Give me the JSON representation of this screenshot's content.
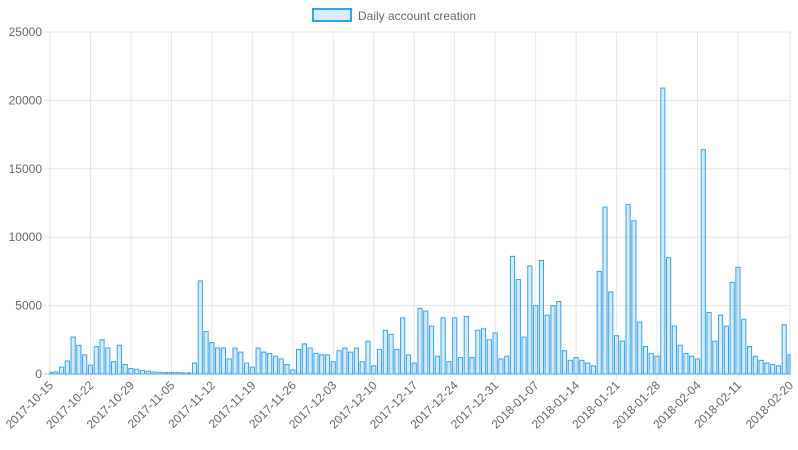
{
  "chart_data": {
    "type": "bar",
    "legend": {
      "label": "Daily account creation",
      "position": "top"
    },
    "colors": {
      "fill": "rgba(54,162,235,0.2)",
      "stroke": "#36a2eb"
    },
    "grid": true,
    "ylim": [
      0,
      25000
    ],
    "y_ticks": [
      "0",
      "5000",
      "10000",
      "15000",
      "20000",
      "25000"
    ],
    "x_tick_labels": [
      "2017-10-15",
      "2017-10-22",
      "2017-10-29",
      "2017-11-05",
      "2017-11-12",
      "2017-11-19",
      "2017-11-26",
      "2017-12-03",
      "2017-12-10",
      "2017-12-17",
      "2017-12-24",
      "2017-12-31",
      "2018-01-07",
      "2018-01-14",
      "2018-01-21",
      "2018-01-28",
      "2018-02-04",
      "2018-02-11",
      "2018-02-20"
    ],
    "x_start": "2017-10-15",
    "x_end": "2018-02-20",
    "values": [
      120,
      150,
      500,
      950,
      2700,
      2100,
      1400,
      650,
      2000,
      2500,
      1900,
      900,
      2100,
      700,
      400,
      350,
      250,
      200,
      150,
      120,
      100,
      100,
      100,
      80,
      80,
      800,
      6800,
      3100,
      2300,
      1900,
      1900,
      1100,
      1900,
      1600,
      800,
      500,
      1900,
      1600,
      1500,
      1300,
      1100,
      700,
      300,
      1800,
      2200,
      1900,
      1500,
      1400,
      1400,
      900,
      1700,
      1900,
      1600,
      1900,
      900,
      2400,
      600,
      1800,
      3200,
      2900,
      1800,
      4100,
      1400,
      800,
      4800,
      4600,
      3500,
      1300,
      4100,
      900,
      4100,
      1200,
      4200,
      1200,
      3200,
      3300,
      2500,
      3000,
      1100,
      1300,
      8600,
      6900,
      2700,
      7900,
      5000,
      8300,
      4300,
      5000,
      5300,
      1700,
      1000,
      1200,
      1000,
      800,
      600,
      7500,
      12200,
      6000,
      2800,
      2400,
      12400,
      11200,
      3800,
      2000,
      1500,
      1300,
      20900,
      8500,
      3500,
      2100,
      1500,
      1300,
      1100,
      16400,
      4500,
      2400,
      4300,
      3500,
      6700,
      7800,
      4000,
      2000,
      1300,
      1000,
      800,
      700,
      600,
      3600,
      1400
    ]
  }
}
